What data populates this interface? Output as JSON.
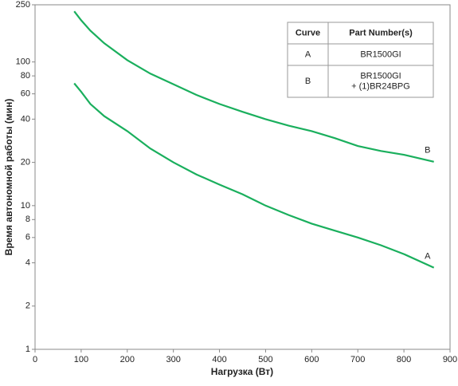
{
  "chart_data": {
    "type": "line",
    "x_label": "Нагрузка (Вт)",
    "y_label": "Время автономной работы (мин)",
    "x": [
      85,
      100,
      120,
      150,
      200,
      250,
      300,
      350,
      400,
      450,
      500,
      550,
      600,
      650,
      700,
      750,
      800,
      865
    ],
    "series": [
      {
        "name": "A",
        "color": "#1aaf5d",
        "values": [
          71,
          62,
          51,
          42,
          33,
          25,
          20,
          16.5,
          14,
          12,
          10,
          8.6,
          7.5,
          6.7,
          6,
          5.3,
          4.6,
          3.7
        ]
      },
      {
        "name": "B",
        "color": "#1aaf5d",
        "values": [
          225,
          195,
          165,
          135,
          103,
          83,
          70,
          59,
          51,
          45,
          40,
          36,
          33,
          29.5,
          26,
          24,
          22.6,
          20.2
        ]
      }
    ],
    "xlim": [
      0,
      900
    ],
    "xticks": [
      0,
      100,
      200,
      300,
      400,
      500,
      600,
      700,
      800,
      900
    ],
    "ylim": [
      1,
      250
    ],
    "yticks": [
      1,
      2,
      4,
      6,
      8,
      10,
      20,
      40,
      60,
      80,
      100,
      250
    ],
    "log_y": true,
    "legend_table": {
      "columns": [
        "Curve",
        "Part Number(s)"
      ],
      "rows": [
        [
          "A",
          [
            "BR1500GI"
          ]
        ],
        [
          "B",
          [
            "BR1500GI",
            "+ (1)BR24BPG"
          ]
        ]
      ]
    }
  }
}
